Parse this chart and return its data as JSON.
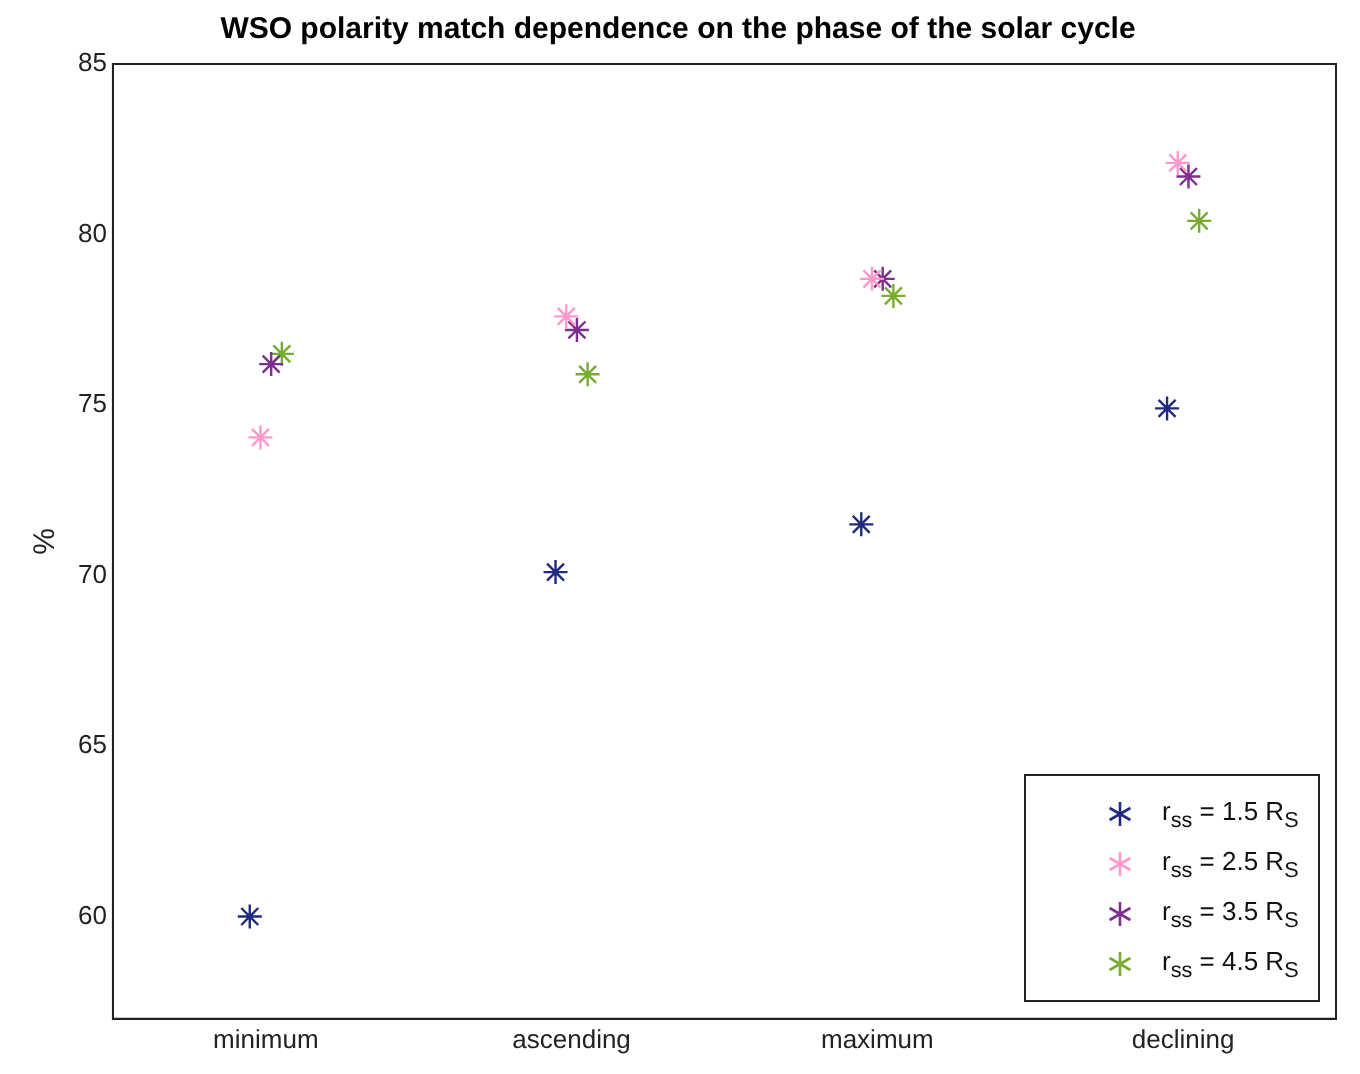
{
  "chart_data": {
    "type": "scatter",
    "title": "WSO polarity match dependence on the phase of the solar cycle",
    "ylabel": "%",
    "categories": [
      "minimum",
      "ascending",
      "maximum",
      "declining"
    ],
    "ylim": [
      57,
      85
    ],
    "yticks": [
      60,
      65,
      70,
      75,
      80,
      85
    ],
    "grid": false,
    "legend": "bottom right",
    "series": [
      {
        "name": "r$_{ss}$ = 1.5 R$_{S}$",
        "color": "#1f2a80",
        "values": [
          60.0,
          70.1,
          71.5,
          74.9
        ]
      },
      {
        "name": "r$_{ss}$ = 2.5 R$_{S}$",
        "color": "#ff99cc",
        "values": [
          74.05,
          77.6,
          78.7,
          82.1
        ]
      },
      {
        "name": "r$_{ss}$ = 3.5 R$_{S}$",
        "color": "#7e2f8e",
        "values": [
          76.2,
          77.2,
          78.7,
          81.7
        ]
      },
      {
        "name": "r$_{ss}$ = 4.5 R$_{S}$",
        "color": "#77ac30",
        "values": [
          76.5,
          75.9,
          78.2,
          80.4
        ]
      }
    ]
  }
}
